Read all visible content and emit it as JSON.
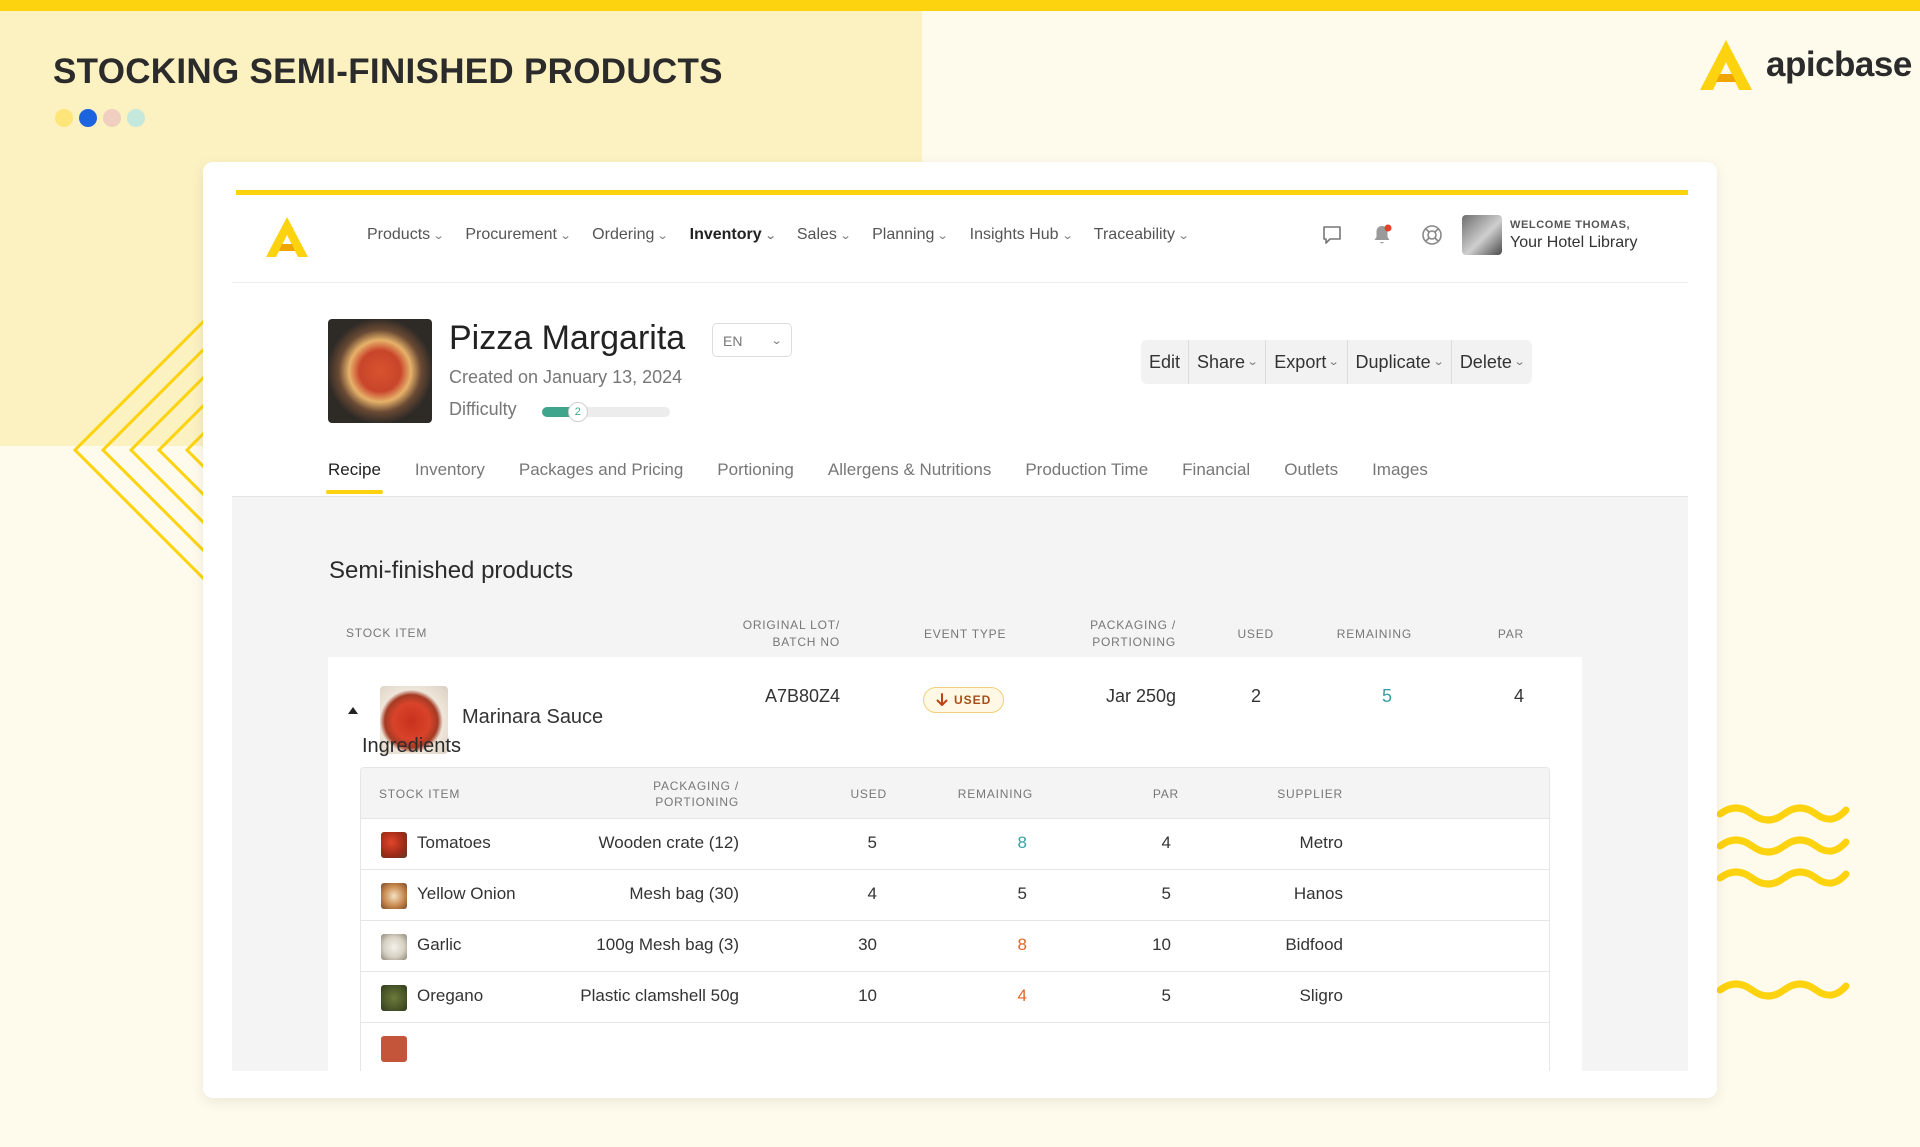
{
  "page": {
    "headline": "STOCKING SEMI-FINISHED PRODUCTS",
    "brand": "apicbase",
    "dot_colors": [
      "#fde57a",
      "#1c63e0",
      "#f0cfc0",
      "#c5e8dd"
    ]
  },
  "nav": {
    "items": [
      {
        "label": "Products"
      },
      {
        "label": "Procurement"
      },
      {
        "label": "Ordering"
      },
      {
        "label": "Inventory",
        "active": true
      },
      {
        "label": "Sales"
      },
      {
        "label": "Planning"
      },
      {
        "label": "Insights Hub"
      },
      {
        "label": "Traceability"
      }
    ],
    "icons": [
      "chat-icon",
      "bell-icon",
      "help-icon"
    ],
    "user": {
      "welcome": "WELCOME THOMAS,",
      "org": "Your Hotel Library"
    }
  },
  "product": {
    "name": "Pizza Margarita",
    "language": "EN",
    "created": "Created on January 13, 2024",
    "difficulty_label": "Difficulty",
    "difficulty_value": "2",
    "difficulty_fraction": 0.28
  },
  "actions": [
    "Edit",
    "Share",
    "Export",
    "Duplicate",
    "Delete"
  ],
  "tabs": [
    {
      "label": "Recipe",
      "active": true
    },
    {
      "label": "Inventory"
    },
    {
      "label": "Packages and Pricing"
    },
    {
      "label": "Portioning"
    },
    {
      "label": "Allergens & Nutritions"
    },
    {
      "label": "Production Time"
    },
    {
      "label": "Financial"
    },
    {
      "label": "Outlets"
    },
    {
      "label": "Images"
    }
  ],
  "semi": {
    "title": "Semi-finished products",
    "headers": {
      "stock_item": "STOCK ITEM",
      "lot_1": "ORIGINAL LOT/",
      "lot_2": "BATCH NO",
      "event": "EVENT TYPE",
      "pack_1": "PACKAGING /",
      "pack_2": "PORTIONING",
      "used": "USED",
      "remaining": "REMAINING",
      "par": "PAR"
    },
    "row": {
      "name": "Marinara Sauce",
      "lot": "A7B80Z4",
      "event": "USED",
      "packaging": "Jar 250g",
      "used": "2",
      "remaining": "5",
      "par": "4"
    }
  },
  "ingredients": {
    "title": "Ingredients",
    "headers": {
      "stock_item": "STOCK ITEM",
      "pack_1": "PACKAGING /",
      "pack_2": "PORTIONING",
      "used": "USED",
      "remaining": "REMAINING",
      "par": "PAR",
      "supplier": "SUPPLIER"
    },
    "rows": [
      {
        "name": "Tomatoes",
        "packaging": "Wooden crate (12)",
        "used": "5",
        "remaining": "8",
        "par": "4",
        "supplier": "Metro",
        "remaining_color": "#3a9fa2"
      },
      {
        "name": "Yellow Onion",
        "packaging": "Mesh bag (30)",
        "used": "4",
        "remaining": "5",
        "par": "5",
        "supplier": "Hanos",
        "remaining_color": "#333333"
      },
      {
        "name": "Garlic",
        "packaging": "100g Mesh bag (3)",
        "used": "30",
        "remaining": "8",
        "par": "10",
        "supplier": "Bidfood",
        "remaining_color": "#e0662a"
      },
      {
        "name": "Oregano",
        "packaging": "Plastic clamshell 50g",
        "used": "10",
        "remaining": "4",
        "par": "5",
        "supplier": "Sligro",
        "remaining_color": "#e0662a"
      }
    ]
  }
}
